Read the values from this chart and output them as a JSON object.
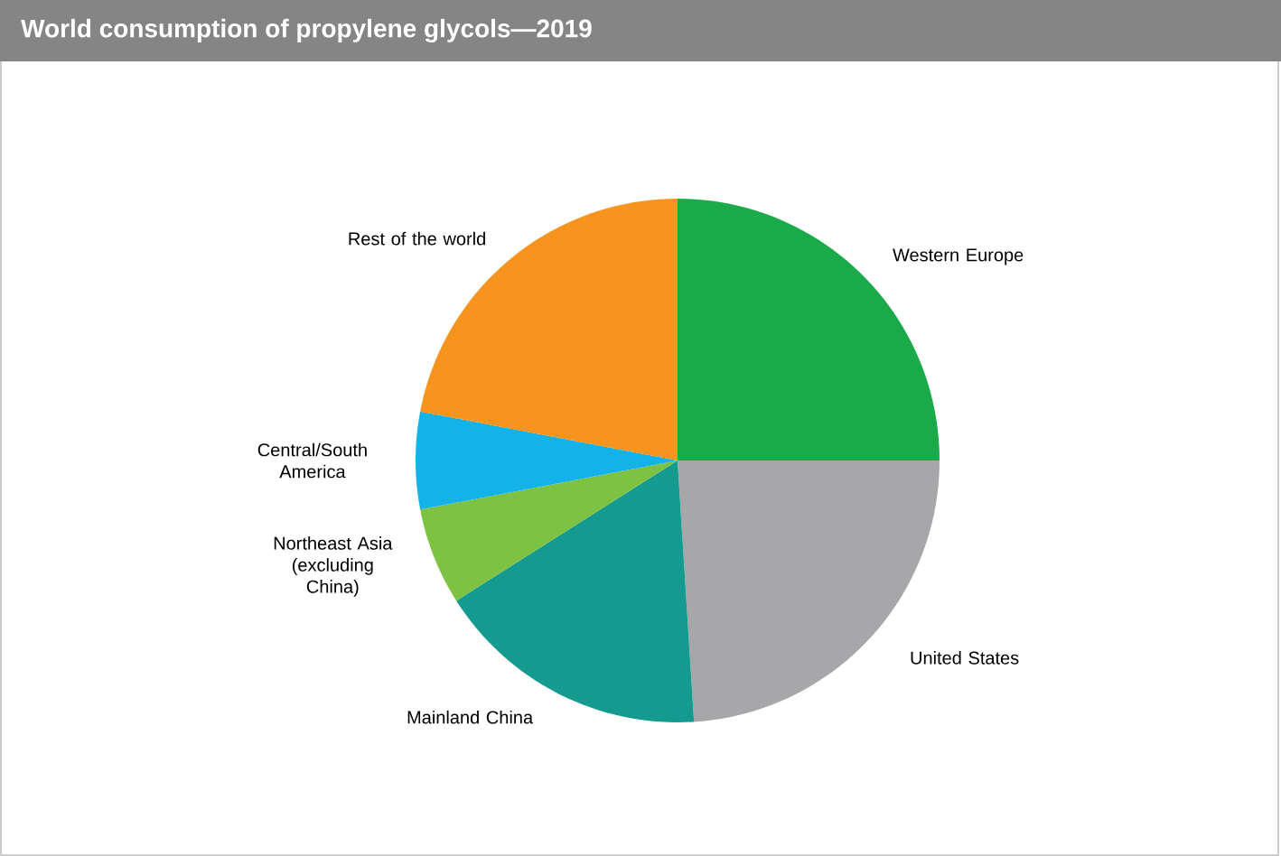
{
  "chart_data": {
    "type": "pie",
    "title": "World consumption  of propylene glycols—2019",
    "categories": [
      "Western Europe",
      "United States",
      "Mainland China",
      "Northeast Asia (excluding China)",
      "Central/South America",
      "Rest of the world"
    ],
    "values": [
      25,
      24,
      17,
      6,
      6,
      22
    ],
    "colors": [
      "#1aaa4a",
      "#a7a7a9",
      "#149a8f",
      "#7dc242",
      "#13b3ea",
      "#f7941d"
    ]
  }
}
